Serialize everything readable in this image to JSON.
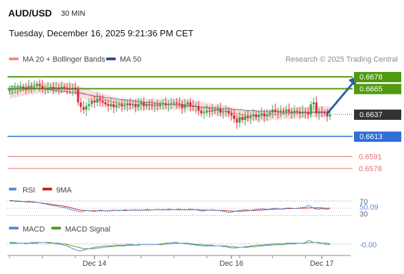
{
  "header": {
    "symbol": "AUD/USD",
    "timeframe": "30 MIN",
    "datetime": "Tuesday, December 16, 2025 9:21:36 PM CET"
  },
  "legend": {
    "ma20_label": "MA 20 + Bollinger Bands",
    "ma50_label": "MA 50",
    "credit": "Research © 2025 Trading Central"
  },
  "colors": {
    "up": "#2ea043",
    "down": "#d7263d",
    "ma20": "#f28b82",
    "ma50": "#6b7b9e",
    "band": "#f9d2d0",
    "resistance": "#4f9a0f",
    "support_main": "#2f6fd6",
    "support_minor": "#e07070",
    "current": "#333333",
    "arrow": "#2f5da8",
    "rsi": "#5b8bd6",
    "rsi_ma": "#cc2222",
    "macd": "#5b8bd6",
    "macd_signal": "#52a024"
  },
  "chart_data": {
    "type": "line",
    "instrument": "AUD/USD",
    "interval": "30 MIN",
    "ylim": [
      0.6566,
      0.669
    ],
    "x_ticks": [
      "Dec 14",
      "Dec 16",
      "Dec 17"
    ],
    "x_tick_index": [
      31,
      81,
      114
    ],
    "current_price": "0.6637",
    "levels": [
      {
        "value": 0.6678,
        "label": "0.6678",
        "kind": "resistance"
      },
      {
        "value": 0.6665,
        "label": "0.6665",
        "kind": "resistance"
      },
      {
        "value": 0.6613,
        "label": "0.6613",
        "kind": "support_main"
      },
      {
        "value": 0.6591,
        "label": "0.6591",
        "kind": "support_minor"
      },
      {
        "value": 0.6578,
        "label": "0.6578",
        "kind": "support_minor"
      }
    ],
    "arrow": {
      "from_index": 116,
      "from_value": 0.6638,
      "to_index": 126,
      "to_value": 0.6676
    },
    "close": [
      0.6664,
      0.6664,
      0.6665,
      0.6666,
      0.6667,
      0.6666,
      0.6665,
      0.6668,
      0.6667,
      0.6668,
      0.667,
      0.6668,
      0.6665,
      0.6665,
      0.6666,
      0.6667,
      0.6665,
      0.6666,
      0.6665,
      0.6667,
      0.6666,
      0.6665,
      0.6664,
      0.6666,
      0.6664,
      0.665,
      0.6645,
      0.6642,
      0.6646,
      0.6648,
      0.6652,
      0.665,
      0.6654,
      0.6652,
      0.665,
      0.6648,
      0.6646,
      0.6648,
      0.6645,
      0.6647,
      0.6648,
      0.6646,
      0.6647,
      0.6649,
      0.6647,
      0.6648,
      0.6645,
      0.6648,
      0.665,
      0.6646,
      0.6648,
      0.6647,
      0.6646,
      0.6647,
      0.6646,
      0.6648,
      0.6649,
      0.6647,
      0.6648,
      0.6649,
      0.665,
      0.6649,
      0.6648,
      0.6644,
      0.6648,
      0.665,
      0.6646,
      0.6645,
      0.6646,
      0.6641,
      0.6638,
      0.6639,
      0.6641,
      0.664,
      0.6642,
      0.6641,
      0.6643,
      0.6639,
      0.664,
      0.6641,
      0.6638,
      0.6636,
      0.6632,
      0.6628,
      0.6634,
      0.6631,
      0.6635,
      0.6633,
      0.6635,
      0.6637,
      0.6634,
      0.6636,
      0.6638,
      0.6635,
      0.6637,
      0.6639,
      0.6642,
      0.664,
      0.6639,
      0.6641,
      0.664,
      0.6642,
      0.664,
      0.6639,
      0.6641,
      0.664,
      0.6638,
      0.664,
      0.6639,
      0.6637,
      0.6648,
      0.665,
      0.6638,
      0.664,
      0.6639,
      0.6638,
      0.6635,
      0.6637
    ],
    "ma20": [
      0.666,
      0.6661,
      0.6661,
      0.6662,
      0.6663,
      0.6663,
      0.6664,
      0.6664,
      0.6665,
      0.6665,
      0.6666,
      0.6666,
      0.6666,
      0.6666,
      0.6666,
      0.6666,
      0.6666,
      0.6666,
      0.6666,
      0.6666,
      0.6666,
      0.6665,
      0.6665,
      0.6665,
      0.6664,
      0.6663,
      0.6661,
      0.666,
      0.6659,
      0.6658,
      0.6657,
      0.6656,
      0.6656,
      0.6655,
      0.6654,
      0.6653,
      0.6652,
      0.6651,
      0.665,
      0.665,
      0.6649,
      0.6649,
      0.6648,
      0.6648,
      0.6648,
      0.6648,
      0.6648,
      0.6648,
      0.6648,
      0.6648,
      0.6648,
      0.6648,
      0.6648,
      0.6648,
      0.6648,
      0.6648,
      0.6648,
      0.6648,
      0.6648,
      0.6648,
      0.6648,
      0.6648,
      0.6648,
      0.6648,
      0.6647,
      0.6647,
      0.6647,
      0.6646,
      0.6646,
      0.6645,
      0.6645,
      0.6644,
      0.6644,
      0.6643,
      0.6643,
      0.6642,
      0.6642,
      0.6641,
      0.6641,
      0.664,
      0.664,
      0.6639,
      0.6638,
      0.6638,
      0.6637,
      0.6637,
      0.6636,
      0.6636,
      0.6636,
      0.6636,
      0.6636,
      0.6636,
      0.6636,
      0.6636,
      0.6636,
      0.6636,
      0.6637,
      0.6637,
      0.6637,
      0.6637,
      0.6638,
      0.6638,
      0.6638,
      0.6638,
      0.6638,
      0.6639,
      0.6639,
      0.6639,
      0.6639,
      0.6639,
      0.664,
      0.664,
      0.664,
      0.664,
      0.664,
      0.664,
      0.664,
      0.664
    ],
    "ma50": [
      0.6668,
      0.6667,
      0.6667,
      0.6667,
      0.6667,
      0.6666,
      0.6666,
      0.6666,
      0.6666,
      0.6666,
      0.6665,
      0.6665,
      0.6665,
      0.6664,
      0.6664,
      0.6664,
      0.6663,
      0.6663,
      0.6663,
      0.6662,
      0.6662,
      0.6662,
      0.6661,
      0.6661,
      0.6661,
      0.666,
      0.666,
      0.6659,
      0.6659,
      0.6658,
      0.6658,
      0.6657,
      0.6657,
      0.6656,
      0.6656,
      0.6655,
      0.6655,
      0.6655,
      0.6654,
      0.6654,
      0.6653,
      0.6653,
      0.6653,
      0.6652,
      0.6652,
      0.6652,
      0.6651,
      0.6651,
      0.6651,
      0.665,
      0.665,
      0.665,
      0.665,
      0.6649,
      0.6649,
      0.6649,
      0.6649,
      0.6648,
      0.6648,
      0.6648,
      0.6648,
      0.6647,
      0.6647,
      0.6647,
      0.6647,
      0.6646,
      0.6646,
      0.6646,
      0.6646,
      0.6645,
      0.6645,
      0.6645,
      0.6645,
      0.6644,
      0.6644,
      0.6644,
      0.6644,
      0.6643,
      0.6643,
      0.6643,
      0.6643,
      0.6643,
      0.6642,
      0.6642,
      0.6642,
      0.6642,
      0.6641,
      0.6641,
      0.6641,
      0.6641,
      0.6641,
      0.664,
      0.664,
      0.664,
      0.664,
      0.664,
      0.664,
      0.664,
      0.664,
      0.6639,
      0.6639,
      0.6639,
      0.6639,
      0.6639,
      0.6639,
      0.6639,
      0.6639,
      0.6639,
      0.6639,
      0.6639,
      0.6639,
      0.6639,
      0.6639,
      0.6639,
      0.6639,
      0.6639,
      0.6639,
      0.6639
    ],
    "band_halfwidth": 0.0006,
    "rsi": {
      "label": "RSI",
      "ma_label": "9MA",
      "value_label": "50.09",
      "levels": [
        70,
        30
      ],
      "ylim": [
        20,
        80
      ],
      "rsi": [
        72,
        71,
        70,
        70,
        69,
        68,
        68,
        69,
        68,
        67,
        66,
        65,
        63,
        62,
        60,
        58,
        57,
        56,
        54,
        53,
        52,
        50,
        47,
        45,
        43,
        41,
        40,
        42,
        44,
        43,
        42,
        41,
        43,
        45,
        44,
        43,
        42,
        44,
        45,
        44,
        43,
        44,
        46,
        45,
        44,
        45,
        46,
        45,
        44,
        45,
        47,
        46,
        45,
        46,
        47,
        46,
        45,
        46,
        48,
        47,
        46,
        47,
        48,
        46,
        45,
        47,
        48,
        47,
        46,
        44,
        42,
        43,
        44,
        45,
        46,
        45,
        44,
        43,
        42,
        40,
        38,
        39,
        41,
        43,
        44,
        45,
        46,
        45,
        44,
        46,
        47,
        48,
        49,
        48,
        47,
        48,
        49,
        50,
        49,
        48,
        49,
        50,
        51,
        50,
        49,
        50,
        51,
        52,
        53,
        58,
        55,
        50,
        48,
        47,
        49,
        48,
        47,
        50
      ],
      "ma": [
        70,
        70,
        69,
        69,
        68,
        68,
        67,
        67,
        67,
        66,
        66,
        65,
        64,
        63,
        62,
        61,
        60,
        59,
        58,
        57,
        55,
        54,
        52,
        50,
        48,
        46,
        45,
        44,
        44,
        43,
        43,
        43,
        43,
        43,
        43,
        43,
        43,
        43,
        44,
        44,
        44,
        44,
        44,
        44,
        45,
        45,
        45,
        45,
        45,
        45,
        45,
        45,
        45,
        46,
        46,
        46,
        46,
        46,
        46,
        46,
        46,
        46,
        46,
        46,
        46,
        46,
        46,
        46,
        46,
        46,
        45,
        45,
        45,
        45,
        45,
        44,
        44,
        44,
        44,
        43,
        43,
        42,
        42,
        42,
        42,
        42,
        43,
        43,
        44,
        44,
        44,
        45,
        45,
        46,
        46,
        47,
        47,
        48,
        48,
        48,
        48,
        49,
        49,
        49,
        49,
        49,
        50,
        50,
        50,
        51,
        51,
        51,
        51,
        51,
        51,
        50,
        50,
        50
      ]
    },
    "macd": {
      "label": "MACD",
      "signal_label": "MACD Signal",
      "value_label": "-0.00",
      "ylim": [
        -0.0012,
        0.0012
      ],
      "macd": [
        0.0002,
        0.0002,
        0.0002,
        0.0001,
        0.0001,
        0.0001,
        0.0,
        0.0001,
        0.0002,
        0.0002,
        0.0002,
        0.0002,
        0.0002,
        0.0002,
        0.0001,
        0.0001,
        0.0001,
        0.0,
        0.0,
        -0.0001,
        -0.0002,
        -0.0003,
        -0.0005,
        -0.0007,
        -0.0008,
        -0.001,
        -0.001,
        -0.0009,
        -0.0008,
        -0.0007,
        -0.0006,
        -0.0005,
        -0.0004,
        -0.0004,
        -0.0003,
        -0.0003,
        -0.0003,
        -0.0003,
        -0.0002,
        -0.0002,
        -0.0002,
        -0.0002,
        -0.0002,
        -0.0001,
        -0.0001,
        -0.0001,
        -0.0002,
        -0.0001,
        -0.0001,
        -0.0001,
        -0.0001,
        -0.0001,
        -0.0001,
        -0.0001,
        -0.0001,
        0.0,
        0.0,
        0.0001,
        0.0001,
        0.0002,
        0.0002,
        0.0002,
        0.0001,
        0.0001,
        0.0,
        0.0,
        -0.0001,
        -0.0001,
        -0.0002,
        -0.0002,
        -0.0003,
        -0.0003,
        -0.0003,
        -0.0003,
        -0.0003,
        -0.0003,
        -0.0003,
        -0.0003,
        -0.0004,
        -0.0004,
        -0.0005,
        -0.0006,
        -0.0006,
        -0.0006,
        -0.0005,
        -0.0005,
        -0.0004,
        -0.0004,
        -0.0003,
        -0.0003,
        -0.0002,
        -0.0002,
        -0.0002,
        -0.0001,
        -0.0001,
        -0.0001,
        0.0,
        0.0,
        0.0,
        0.0,
        0.0,
        0.0001,
        0.0001,
        0.0001,
        0.0001,
        0.0001,
        0.0001,
        0.0001,
        0.0002,
        0.0005,
        0.0004,
        0.0002,
        0.0002,
        0.0001,
        0.0001,
        0.0,
        -0.0001,
        -0.0001
      ],
      "signal": [
        0.0001,
        0.0001,
        0.0001,
        0.0001,
        0.0001,
        0.0001,
        0.0001,
        0.0001,
        0.0001,
        0.0001,
        0.0001,
        0.0002,
        0.0002,
        0.0002,
        0.0002,
        0.0002,
        0.0001,
        0.0001,
        0.0001,
        0.0,
        0.0,
        -0.0001,
        -0.0002,
        -0.0003,
        -0.0004,
        -0.0005,
        -0.0006,
        -0.0007,
        -0.0007,
        -0.0007,
        -0.0007,
        -0.0007,
        -0.0006,
        -0.0006,
        -0.0005,
        -0.0005,
        -0.0004,
        -0.0004,
        -0.0004,
        -0.0003,
        -0.0003,
        -0.0003,
        -0.0003,
        -0.0002,
        -0.0002,
        -0.0002,
        -0.0002,
        -0.0002,
        -0.0001,
        -0.0001,
        -0.0001,
        -0.0001,
        -0.0001,
        -0.0001,
        -0.0001,
        -0.0001,
        -0.0001,
        0.0,
        0.0,
        0.0,
        0.0001,
        0.0001,
        0.0001,
        0.0001,
        0.0001,
        0.0001,
        0.0,
        0.0,
        -0.0001,
        -0.0001,
        -0.0001,
        -0.0002,
        -0.0002,
        -0.0002,
        -0.0002,
        -0.0003,
        -0.0003,
        -0.0003,
        -0.0003,
        -0.0003,
        -0.0004,
        -0.0004,
        -0.0004,
        -0.0005,
        -0.0005,
        -0.0005,
        -0.0005,
        -0.0005,
        -0.0004,
        -0.0004,
        -0.0004,
        -0.0003,
        -0.0003,
        -0.0003,
        -0.0002,
        -0.0002,
        -0.0002,
        -0.0001,
        -0.0001,
        -0.0001,
        -0.0001,
        0.0,
        0.0,
        0.0,
        0.0,
        0.0001,
        0.0001,
        0.0001,
        0.0001,
        0.0002,
        0.0002,
        0.0002,
        0.0002,
        0.0002,
        0.0001,
        0.0001,
        0.0001,
        0.0
      ]
    }
  }
}
